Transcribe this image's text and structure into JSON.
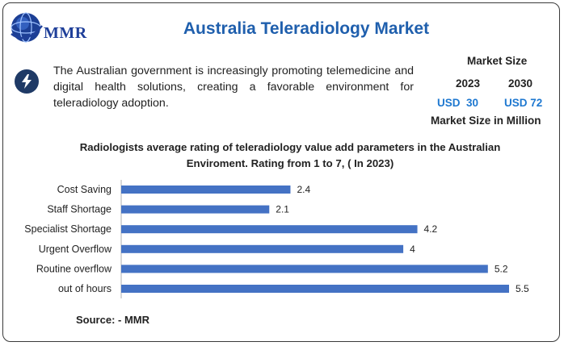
{
  "brand": {
    "logo_text": "MMR"
  },
  "header": {
    "title": "Australia Teleradiology Market"
  },
  "description": "The Australian government is increasingly promoting telemedicine and digital health solutions, creating a favorable environment for teleradiology adoption.",
  "market_size": {
    "title": "Market Size",
    "year_start": "2023",
    "year_end": "2030",
    "value_start": "USD  30",
    "value_end": "USD 72",
    "unit": "Market Size in Million"
  },
  "colors": {
    "bar": "#4472c4",
    "title": "#1f5fad",
    "value_accent": "#1e78d0"
  },
  "icons": {
    "info": "lightning-bolt-icon",
    "logo": "globe-icon"
  },
  "chart_data": {
    "type": "bar",
    "orientation": "horizontal",
    "title": "Radiologists average rating of teleradiology value add parameters in the Australian Enviroment. Rating from 1 to 7, ( In 2023)",
    "categories": [
      "Cost Saving",
      "Staff Shortage",
      "Specialist Shortage",
      "Urgent Overflow",
      "Routine overflow",
      "out of hours"
    ],
    "values": [
      2.4,
      2.1,
      4.2,
      4,
      5.2,
      5.5
    ],
    "value_labels": [
      "2.4",
      "2.1",
      "4.2",
      "4",
      "5.2",
      "5.5"
    ],
    "xlim": [
      0,
      5.5
    ],
    "grid": false,
    "legend": "none"
  },
  "footer": {
    "source": "Source: - MMR"
  }
}
